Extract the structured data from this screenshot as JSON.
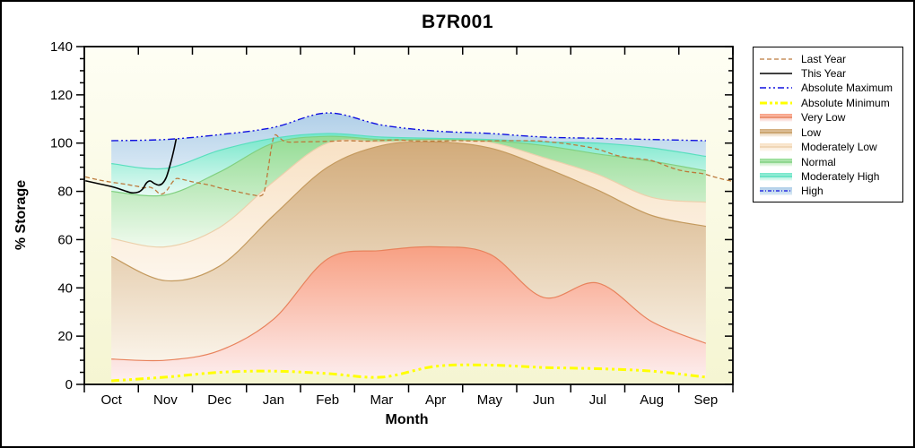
{
  "chart_data": {
    "type": "area",
    "title": "B7R001",
    "xlabel": "Month",
    "ylabel": "% Storage",
    "ylim": [
      0,
      140
    ],
    "y_tick_step": 20,
    "y_minor_step": 5,
    "y_ticks": [
      0,
      20,
      40,
      60,
      80,
      100,
      120,
      140
    ],
    "months": [
      "Oct",
      "Nov",
      "Dec",
      "Jan",
      "Feb",
      "Mar",
      "Apr",
      "May",
      "Jun",
      "Jul",
      "Aug",
      "Sep"
    ],
    "grid": false,
    "legend_position": "right",
    "plot_background": {
      "top": "#fefef4",
      "bottom": "#f5f5d2"
    },
    "boundaries": {
      "absolute_minimum": [
        1.5,
        3,
        5,
        5.5,
        4.5,
        3,
        7.5,
        8,
        7,
        6.5,
        5.5,
        3
      ],
      "very_low_top": [
        10.5,
        10,
        14,
        27,
        52,
        55.5,
        57,
        54,
        36,
        42,
        26,
        17
      ],
      "low_top": [
        53,
        43,
        49,
        70,
        90,
        99,
        100.5,
        98,
        90,
        80.5,
        70,
        65.5
      ],
      "moderately_low_top": [
        60.5,
        57,
        65,
        84,
        100,
        100.5,
        101,
        100.3,
        94,
        87,
        77.5,
        75.5
      ],
      "normal_top": [
        80,
        78.5,
        88,
        100,
        102.8,
        101.5,
        101.5,
        101,
        99,
        95.5,
        92.5,
        88.5
      ],
      "moderately_high_top": [
        91.5,
        89.5,
        97,
        102,
        104,
        102.5,
        102,
        101.5,
        100.5,
        100,
        98,
        94.5
      ],
      "absolute_maximum": [
        101,
        101.5,
        103.5,
        106.5,
        112.5,
        107.5,
        105,
        104,
        102.5,
        102,
        101.5,
        101
      ]
    },
    "bands": [
      {
        "label": "Very Low",
        "from": "absolute_minimum",
        "to": "very_low_top",
        "top_color": "#f8a083",
        "bottom_color": "#fdeff0",
        "line_color": "#e8825c"
      },
      {
        "label": "Low",
        "from": "very_low_top",
        "to": "low_top",
        "top_color": "#d2ab7a",
        "bottom_color": "#faf3e8",
        "line_color": "#c49a5e"
      },
      {
        "label": "Moderately Low",
        "from": "low_top",
        "to": "moderately_low_top",
        "top_color": "#f8e1c4",
        "bottom_color": "#fdf6ec",
        "line_color": "#ecd0ac"
      },
      {
        "label": "Normal",
        "from": "moderately_low_top",
        "to": "normal_top",
        "top_color": "#94dc94",
        "bottom_color": "#effaed",
        "line_color": "#80d080"
      },
      {
        "label": "Moderately High",
        "from": "normal_top",
        "to": "moderately_high_top",
        "top_color": "#74e7ca",
        "bottom_color": "#e8faf4",
        "line_color": "#58dfbe"
      },
      {
        "label": "High",
        "from": "moderately_high_top",
        "to": "absolute_maximum",
        "top_color": "#b0cfe8",
        "bottom_color": "#d8e8f4",
        "line_color": null
      }
    ],
    "lines": {
      "absolute_maximum": {
        "label": "Absolute Maximum",
        "color": "#1010e0",
        "width": 1.4,
        "dash": "8 3 2 3 2 3"
      },
      "absolute_minimum": {
        "label": "Absolute Minimum",
        "color": "#ffff00",
        "width": 3,
        "dash": "9 4 3 4 3 4"
      },
      "last_year": {
        "label": "Last Year",
        "color": "#bc7a3c",
        "width": 1.3,
        "dash": "5 3",
        "points": [
          [
            0.02,
            86
          ],
          [
            0.25,
            84.8
          ],
          [
            0.5,
            83.8
          ],
          [
            0.72,
            83.1
          ],
          [
            0.9,
            82.4
          ],
          [
            1.0,
            82
          ],
          [
            1.1,
            81.4
          ],
          [
            1.2,
            81.8
          ],
          [
            1.3,
            80.8
          ],
          [
            1.38,
            79.2
          ],
          [
            1.45,
            79
          ],
          [
            1.53,
            80.5
          ],
          [
            1.62,
            83.5
          ],
          [
            1.7,
            85.3
          ],
          [
            1.8,
            85
          ],
          [
            1.92,
            84.4
          ],
          [
            2.05,
            83.7
          ],
          [
            2.3,
            82.7
          ],
          [
            2.55,
            81.2
          ],
          [
            2.8,
            80
          ],
          [
            3.0,
            79
          ],
          [
            3.15,
            78.4
          ],
          [
            3.26,
            78.1
          ],
          [
            3.33,
            80
          ],
          [
            3.4,
            89
          ],
          [
            3.46,
            98
          ],
          [
            3.52,
            103.2
          ],
          [
            3.6,
            102.4
          ],
          [
            3.68,
            101
          ],
          [
            3.8,
            100.4
          ],
          [
            4.0,
            100.5
          ],
          [
            4.3,
            100.6
          ],
          [
            4.6,
            100.8
          ],
          [
            4.9,
            101
          ],
          [
            5.2,
            100.8
          ],
          [
            5.5,
            101.1
          ],
          [
            5.8,
            101.3
          ],
          [
            6.1,
            100.9
          ],
          [
            6.5,
            100.8
          ],
          [
            6.9,
            101
          ],
          [
            7.3,
            100.8
          ],
          [
            7.7,
            101
          ],
          [
            8.1,
            101
          ],
          [
            8.4,
            100.9
          ],
          [
            8.65,
            100.4
          ],
          [
            8.9,
            99.8
          ],
          [
            9.15,
            99
          ],
          [
            9.4,
            98
          ],
          [
            9.6,
            96.8
          ],
          [
            9.8,
            95.2
          ],
          [
            10.0,
            94.2
          ],
          [
            10.2,
            93.6
          ],
          [
            10.45,
            93
          ],
          [
            10.65,
            91.6
          ],
          [
            10.85,
            89.9
          ],
          [
            11.05,
            88.6
          ],
          [
            11.25,
            87.9
          ],
          [
            11.45,
            87.3
          ],
          [
            11.65,
            86
          ],
          [
            11.82,
            85
          ],
          [
            11.97,
            84.3
          ]
        ]
      },
      "this_year": {
        "label": "This Year",
        "color": "#000000",
        "width": 1.6,
        "dash": "",
        "points": [
          [
            0.02,
            84.4
          ],
          [
            0.3,
            83
          ],
          [
            0.55,
            81.7
          ],
          [
            0.78,
            80
          ],
          [
            0.88,
            79.4
          ],
          [
            1.0,
            79.7
          ],
          [
            1.08,
            81
          ],
          [
            1.15,
            83.5
          ],
          [
            1.22,
            84.3
          ],
          [
            1.3,
            83.2
          ],
          [
            1.38,
            82.6
          ],
          [
            1.45,
            83.4
          ],
          [
            1.52,
            86
          ],
          [
            1.6,
            92
          ],
          [
            1.66,
            97.5
          ],
          [
            1.7,
            101.8
          ]
        ]
      }
    },
    "legend": {
      "entries": [
        {
          "label": "Last Year",
          "kind": "line",
          "color": "#bc7a3c",
          "dash": "5 3",
          "width": 1.3
        },
        {
          "label": "This Year",
          "kind": "line",
          "color": "#000000",
          "dash": "",
          "width": 1.5
        },
        {
          "label": "Absolute Maximum",
          "kind": "line",
          "color": "#1010e0",
          "dash": "7 3 2 3 2 3",
          "width": 1.4
        },
        {
          "label": "Absolute Minimum",
          "kind": "line",
          "color": "#ffff00",
          "dash": "8 3 3 3 3 3",
          "width": 3
        },
        {
          "label": "Very Low",
          "kind": "band",
          "band": 0
        },
        {
          "label": "Low",
          "kind": "band",
          "band": 1
        },
        {
          "label": "Moderately Low",
          "kind": "band",
          "band": 2
        },
        {
          "label": "Normal",
          "kind": "band",
          "band": 3
        },
        {
          "label": "Moderately High",
          "kind": "band",
          "band": 4
        },
        {
          "label": "High",
          "kind": "band",
          "band": 5,
          "center_line": {
            "color": "#1010e0",
            "dash": "4 2 1 2",
            "width": 1.2
          }
        }
      ]
    }
  }
}
